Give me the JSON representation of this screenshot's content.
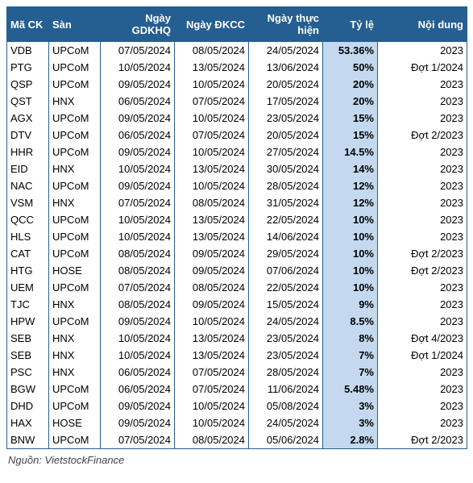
{
  "header_bg": "#255e91",
  "header_fg": "#ffffff",
  "tyle_bg": "#c4d9ef",
  "border_color": "#255e91",
  "footer": "Nguồn: VietstockFinance",
  "columns": [
    {
      "key": "ma",
      "label": "Mã CK",
      "width": 52,
      "align": "left"
    },
    {
      "key": "san",
      "label": "Sàn",
      "width": 64,
      "align": "left"
    },
    {
      "key": "d1",
      "label": "Ngày GDKHQ",
      "width": 92,
      "align": "right"
    },
    {
      "key": "d2",
      "label": "Ngày ĐKCC",
      "width": 92,
      "align": "right"
    },
    {
      "key": "d3",
      "label": "Ngày thực hiện",
      "width": 92,
      "align": "right"
    },
    {
      "key": "tyle",
      "label": "Tỷ lệ",
      "width": 68,
      "align": "right"
    },
    {
      "key": "nd",
      "label": "Nội dung",
      "width": 111,
      "align": "right"
    }
  ],
  "rows": [
    {
      "ma": "VDB",
      "san": "UPCoM",
      "d1": "07/05/2024",
      "d2": "08/05/2024",
      "d3": "24/05/2024",
      "tyle": "53.36%",
      "nd": "2023"
    },
    {
      "ma": "PTG",
      "san": "UPCoM",
      "d1": "10/05/2024",
      "d2": "13/05/2024",
      "d3": "13/06/2024",
      "tyle": "50%",
      "nd": "Đợt 1/2024"
    },
    {
      "ma": "QSP",
      "san": "UPCoM",
      "d1": "09/05/2024",
      "d2": "10/05/2024",
      "d3": "20/05/2024",
      "tyle": "20%",
      "nd": "2023"
    },
    {
      "ma": "QST",
      "san": "HNX",
      "d1": "06/05/2024",
      "d2": "07/05/2024",
      "d3": "17/05/2024",
      "tyle": "20%",
      "nd": "2023"
    },
    {
      "ma": "AGX",
      "san": "UPCoM",
      "d1": "09/05/2024",
      "d2": "10/05/2024",
      "d3": "23/05/2024",
      "tyle": "15%",
      "nd": "2023"
    },
    {
      "ma": "DTV",
      "san": "UPCoM",
      "d1": "06/05/2024",
      "d2": "07/05/2024",
      "d3": "20/05/2024",
      "tyle": "15%",
      "nd": "Đợt 2/2023"
    },
    {
      "ma": "HHR",
      "san": "UPCoM",
      "d1": "09/05/2024",
      "d2": "10/05/2024",
      "d3": "27/05/2024",
      "tyle": "14.5%",
      "nd": "2023"
    },
    {
      "ma": "EID",
      "san": "HNX",
      "d1": "10/05/2024",
      "d2": "13/05/2024",
      "d3": "30/05/2024",
      "tyle": "14%",
      "nd": "2023"
    },
    {
      "ma": "NAC",
      "san": "UPCoM",
      "d1": "09/05/2024",
      "d2": "10/05/2024",
      "d3": "28/05/2024",
      "tyle": "12%",
      "nd": "2023"
    },
    {
      "ma": "VSM",
      "san": "HNX",
      "d1": "07/05/2024",
      "d2": "08/05/2024",
      "d3": "31/05/2024",
      "tyle": "12%",
      "nd": "2023"
    },
    {
      "ma": "QCC",
      "san": "UPCoM",
      "d1": "10/05/2024",
      "d2": "13/05/2024",
      "d3": "22/05/2024",
      "tyle": "10%",
      "nd": "2023"
    },
    {
      "ma": "HLS",
      "san": "UPCoM",
      "d1": "10/05/2024",
      "d2": "13/05/2024",
      "d3": "14/06/2024",
      "tyle": "10%",
      "nd": "2023"
    },
    {
      "ma": "CAT",
      "san": "UPCoM",
      "d1": "08/05/2024",
      "d2": "09/05/2024",
      "d3": "29/05/2024",
      "tyle": "10%",
      "nd": "Đợt 2/2023"
    },
    {
      "ma": "HTG",
      "san": "HOSE",
      "d1": "08/05/2024",
      "d2": "09/05/2024",
      "d3": "07/06/2024",
      "tyle": "10%",
      "nd": "Đợt 2/2023"
    },
    {
      "ma": "UEM",
      "san": "UPCoM",
      "d1": "07/05/2024",
      "d2": "08/05/2024",
      "d3": "22/05/2024",
      "tyle": "10%",
      "nd": "2023"
    },
    {
      "ma": "TJC",
      "san": "HNX",
      "d1": "08/05/2024",
      "d2": "09/05/2024",
      "d3": "15/05/2024",
      "tyle": "9%",
      "nd": "2023"
    },
    {
      "ma": "HPW",
      "san": "UPCoM",
      "d1": "09/05/2024",
      "d2": "10/05/2024",
      "d3": "24/05/2024",
      "tyle": "8.5%",
      "nd": "2023"
    },
    {
      "ma": "SEB",
      "san": "HNX",
      "d1": "10/05/2024",
      "d2": "13/05/2024",
      "d3": "23/05/2024",
      "tyle": "8%",
      "nd": "Đợt 4/2023"
    },
    {
      "ma": "SEB",
      "san": "HNX",
      "d1": "10/05/2024",
      "d2": "13/05/2024",
      "d3": "23/05/2024",
      "tyle": "7%",
      "nd": "Đợt 1/2024"
    },
    {
      "ma": "PSC",
      "san": "HNX",
      "d1": "06/05/2024",
      "d2": "07/05/2024",
      "d3": "28/05/2024",
      "tyle": "7%",
      "nd": "2023"
    },
    {
      "ma": "BGW",
      "san": "UPCoM",
      "d1": "06/05/2024",
      "d2": "07/05/2024",
      "d3": "11/06/2024",
      "tyle": "5.48%",
      "nd": "2023"
    },
    {
      "ma": "DHD",
      "san": "UPCoM",
      "d1": "09/05/2024",
      "d2": "10/05/2024",
      "d3": "05/08/2024",
      "tyle": "3%",
      "nd": "2023"
    },
    {
      "ma": "HAX",
      "san": "HOSE",
      "d1": "09/05/2024",
      "d2": "10/05/2024",
      "d3": "24/05/2024",
      "tyle": "3%",
      "nd": "2023"
    },
    {
      "ma": "BNW",
      "san": "UPCoM",
      "d1": "07/05/2024",
      "d2": "08/05/2024",
      "d3": "05/06/2024",
      "tyle": "2.8%",
      "nd": "Đợt 2/2023"
    }
  ]
}
